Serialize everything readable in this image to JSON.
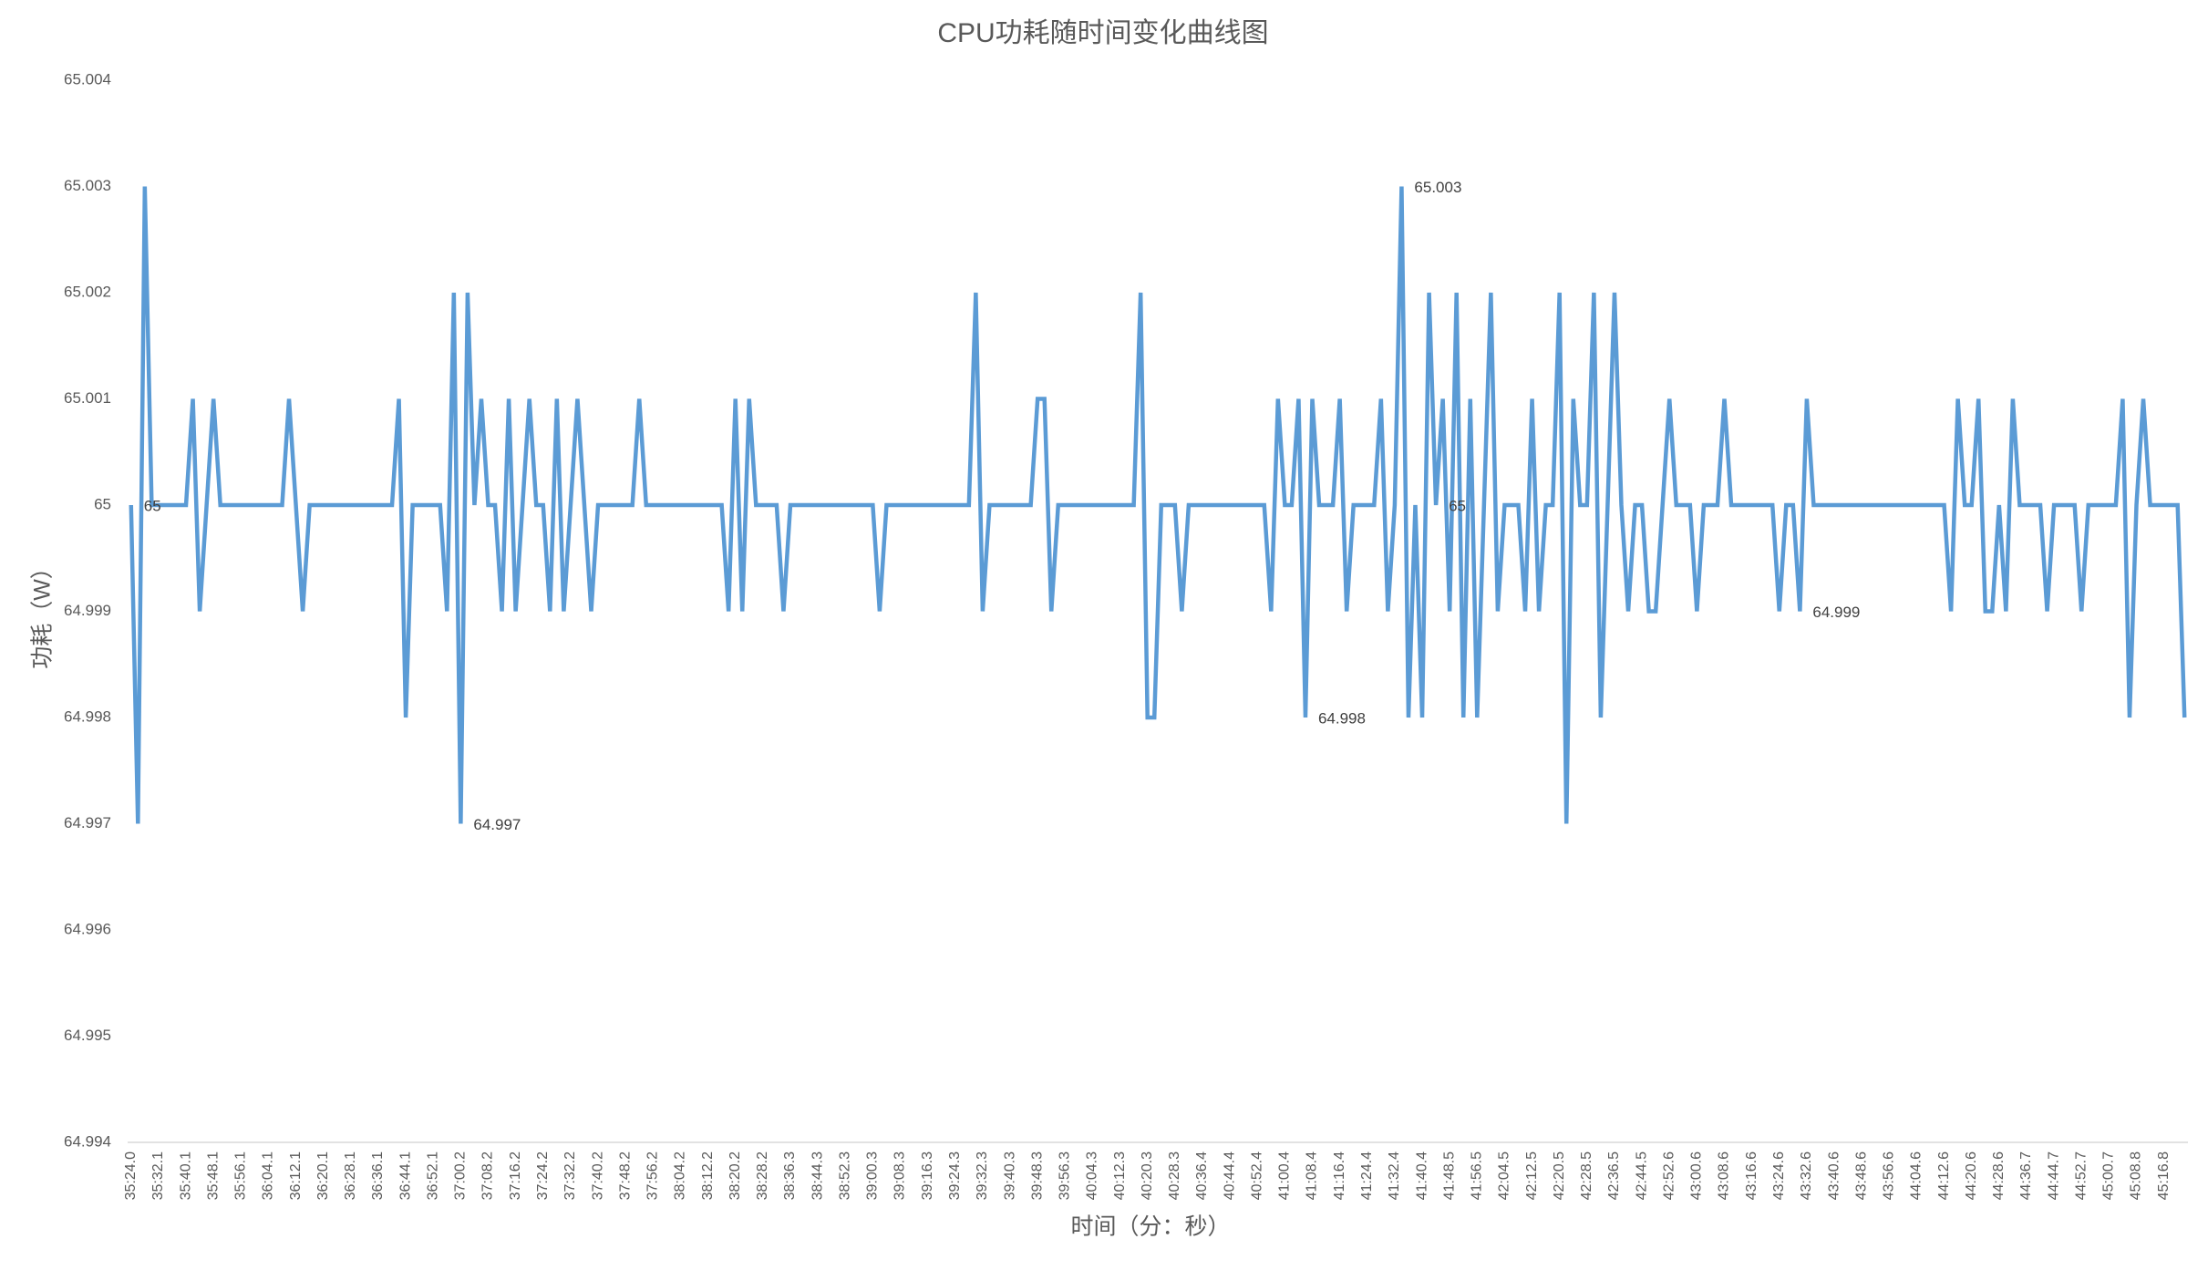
{
  "chart_data": {
    "type": "line",
    "title": "CPU功耗随时间变化曲线图",
    "x_label": "时间（分：秒）",
    "y_label": "功耗（W）",
    "color": "#5b9bd5",
    "grid": false,
    "ylim": [
      64.994,
      65.004
    ],
    "yticks": [
      64.994,
      64.995,
      64.996,
      64.997,
      64.998,
      64.999,
      65,
      65.001,
      65.002,
      65.003,
      65.004
    ],
    "categories": [
      "35:24.0",
      null,
      null,
      null,
      "35:32.1",
      null,
      null,
      null,
      "35:40.1",
      null,
      null,
      null,
      "35:48.1",
      null,
      null,
      null,
      "35:56.1",
      null,
      null,
      null,
      "36:04.1",
      null,
      null,
      null,
      "36:12.1",
      null,
      null,
      null,
      "36:20.1",
      null,
      null,
      null,
      "36:28.1",
      null,
      null,
      null,
      "36:36.1",
      null,
      null,
      null,
      "36:44.1",
      null,
      null,
      null,
      "36:52.1",
      null,
      null,
      null,
      "37:00.2",
      null,
      null,
      null,
      "37:08.2",
      null,
      null,
      null,
      "37:16.2",
      null,
      null,
      null,
      "37:24.2",
      null,
      null,
      null,
      "37:32.2",
      null,
      null,
      null,
      "37:40.2",
      null,
      null,
      null,
      "37:48.2",
      null,
      null,
      null,
      "37:56.2",
      null,
      null,
      null,
      "38:04.2",
      null,
      null,
      null,
      "38:12.2",
      null,
      null,
      null,
      "38:20.2",
      null,
      null,
      null,
      "38:28.2",
      null,
      null,
      null,
      "38:36.3",
      null,
      null,
      null,
      "38:44.3",
      null,
      null,
      null,
      "38:52.3",
      null,
      null,
      null,
      "39:00.3",
      null,
      null,
      null,
      "39:08.3",
      null,
      null,
      null,
      "39:16.3",
      null,
      null,
      null,
      "39:24.3",
      null,
      null,
      null,
      "39:32.3",
      null,
      null,
      null,
      "39:40.3",
      null,
      null,
      null,
      "39:48.3",
      null,
      null,
      null,
      "39:56.3",
      null,
      null,
      null,
      "40:04.3",
      null,
      null,
      null,
      "40:12.3",
      null,
      null,
      null,
      "40:20.3",
      null,
      null,
      null,
      "40:28.3",
      null,
      null,
      null,
      "40:36.4",
      null,
      null,
      null,
      "40:44.4",
      null,
      null,
      null,
      "40:52.4",
      null,
      null,
      null,
      "41:00.4",
      null,
      null,
      null,
      "41:08.4",
      null,
      null,
      null,
      "41:16.4",
      null,
      null,
      null,
      "41:24.4",
      null,
      null,
      null,
      "41:32.4",
      null,
      null,
      null,
      "41:40.4",
      null,
      null,
      null,
      "41:48.5",
      null,
      null,
      null,
      "41:56.5",
      null,
      null,
      null,
      "42:04.5",
      null,
      null,
      null,
      "42:12.5",
      null,
      null,
      null,
      "42:20.5",
      null,
      null,
      null,
      "42:28.5",
      null,
      null,
      null,
      "42:36.5",
      null,
      null,
      null,
      "42:44.5",
      null,
      null,
      null,
      "42:52.6",
      null,
      null,
      null,
      "43:00.6",
      null,
      null,
      null,
      "43:08.6",
      null,
      null,
      null,
      "43:16.6",
      null,
      null,
      null,
      "43:24.6",
      null,
      null,
      null,
      "43:32.6",
      null,
      null,
      null,
      "43:40.6",
      null,
      null,
      null,
      "43:48.6",
      null,
      null,
      null,
      "43:56.6",
      null,
      null,
      null,
      "44:04.6",
      null,
      null,
      null,
      "44:12.6",
      null,
      null,
      null,
      "44:20.6",
      null,
      null,
      null,
      "44:28.6",
      null,
      null,
      null,
      "44:36.7",
      null,
      null,
      null,
      "44:44.7",
      null,
      null,
      null,
      "44:52.7",
      null,
      null,
      null,
      "45:00.7",
      null,
      null,
      null,
      "45:08.8",
      null,
      null,
      null,
      "45:16.8",
      null,
      null,
      null
    ],
    "values": [
      65,
      64.997,
      65.003,
      65,
      65,
      65,
      65,
      65,
      65,
      65.001,
      64.999,
      65,
      65.001,
      65,
      65,
      65,
      65,
      65,
      65,
      65,
      65,
      65,
      65,
      65.001,
      65,
      64.999,
      65,
      65,
      65,
      65,
      65,
      65,
      65,
      65,
      65,
      65,
      65,
      65,
      65,
      65.001,
      64.998,
      65,
      65,
      65,
      65,
      65,
      64.999,
      65.002,
      64.997,
      65.002,
      65,
      65.001,
      65,
      65,
      64.999,
      65.001,
      64.999,
      65,
      65.001,
      65,
      65,
      64.999,
      65.001,
      64.999,
      65,
      65.001,
      65,
      64.999,
      65,
      65,
      65,
      65,
      65,
      65,
      65.001,
      65,
      65,
      65,
      65,
      65,
      65,
      65,
      65,
      65,
      65,
      65,
      65,
      64.999,
      65.001,
      64.999,
      65.001,
      65,
      65,
      65,
      65,
      64.999,
      65,
      65,
      65,
      65,
      65,
      65,
      65,
      65,
      65,
      65,
      65,
      65,
      65,
      64.999,
      65,
      65,
      65,
      65,
      65,
      65,
      65,
      65,
      65,
      65,
      65,
      65,
      65,
      65.002,
      64.999,
      65,
      65,
      65,
      65,
      65,
      65,
      65,
      65.001,
      65.001,
      64.999,
      65,
      65,
      65,
      65,
      65,
      65,
      65,
      65,
      65,
      65,
      65,
      65,
      65.002,
      64.998,
      64.998,
      65,
      65,
      65,
      64.999,
      65,
      65,
      65,
      65,
      65,
      65,
      65,
      65,
      65,
      65,
      65,
      65,
      64.999,
      65.001,
      65,
      65,
      65.001,
      64.998,
      65.001,
      65,
      65,
      65,
      65.001,
      64.999,
      65,
      65,
      65,
      65,
      65.001,
      64.999,
      65,
      65.003,
      64.998,
      65,
      64.998,
      65.002,
      65,
      65.001,
      64.999,
      65.002,
      64.998,
      65.001,
      64.998,
      65,
      65.002,
      64.999,
      65,
      65,
      65,
      64.999,
      65.001,
      64.999,
      65,
      65,
      65.002,
      64.997,
      65.001,
      65,
      65,
      65.002,
      64.998,
      65,
      65.002,
      65,
      64.999,
      65,
      65,
      64.999,
      64.999,
      65,
      65.001,
      65,
      65,
      65,
      64.999,
      65,
      65,
      65,
      65.001,
      65,
      65,
      65,
      65,
      65,
      65,
      65,
      64.999,
      65,
      65,
      64.999,
      65.001,
      65,
      65,
      65,
      65,
      65,
      65,
      65,
      65,
      65,
      65,
      65,
      65,
      65,
      65,
      65,
      65,
      65,
      65,
      65,
      65,
      64.999,
      65.001,
      65,
      65,
      65.001,
      64.999,
      64.999,
      65,
      64.999,
      65.001,
      65,
      65,
      65,
      65,
      64.999,
      65,
      65,
      65,
      65,
      64.999,
      65,
      65,
      65,
      65,
      65,
      65.001,
      64.998,
      65,
      65.001,
      65,
      65,
      65,
      65,
      65,
      64.998
    ],
    "value_labels": [
      "65",
      null,
      null,
      null,
      null,
      null,
      null,
      null,
      null,
      null,
      null,
      null,
      null,
      null,
      null,
      null,
      null,
      null,
      null,
      null,
      null,
      null,
      null,
      null,
      null,
      null,
      null,
      null,
      null,
      null,
      null,
      null,
      null,
      null,
      null,
      null,
      null,
      null,
      null,
      null,
      null,
      null,
      null,
      null,
      null,
      null,
      null,
      null,
      "64.997",
      null,
      null,
      null,
      null,
      null,
      null,
      null,
      null,
      null,
      null,
      null,
      null,
      null,
      null,
      null,
      null,
      null,
      null,
      null,
      null,
      null,
      null,
      null,
      null,
      null,
      null,
      null,
      null,
      null,
      null,
      null,
      null,
      null,
      null,
      null,
      null,
      null,
      null,
      null,
      null,
      null,
      null,
      null,
      null,
      null,
      null,
      null,
      null,
      null,
      null,
      null,
      null,
      null,
      null,
      null,
      null,
      null,
      null,
      null,
      null,
      null,
      null,
      null,
      null,
      null,
      null,
      null,
      null,
      null,
      null,
      null,
      null,
      null,
      null,
      null,
      null,
      null,
      null,
      null,
      null,
      null,
      null,
      null,
      null,
      null,
      null,
      null,
      null,
      null,
      null,
      null,
      null,
      null,
      null,
      null,
      null,
      null,
      null,
      null,
      null,
      null,
      null,
      null,
      null,
      null,
      null,
      null,
      null,
      null,
      null,
      null,
      null,
      null,
      null,
      null,
      null,
      null,
      null,
      null,
      null,
      null,
      null,
      "64.998",
      null,
      null,
      null,
      null,
      null,
      null,
      null,
      null,
      null,
      null,
      null,
      null,
      null,
      "65.003",
      null,
      null,
      null,
      null,
      "65",
      null,
      null,
      null,
      null,
      null,
      null,
      null,
      null,
      null,
      null,
      null,
      null,
      null,
      null,
      null,
      null,
      null,
      null,
      null,
      null,
      null,
      null,
      null,
      null,
      null,
      null,
      null,
      null,
      null,
      null,
      null,
      null,
      null,
      null,
      null,
      null,
      null,
      null,
      null,
      null,
      null,
      null,
      null,
      null,
      null,
      null,
      null,
      null,
      null,
      null,
      null,
      null,
      "64.999",
      null,
      null,
      null,
      null,
      null,
      null,
      null,
      null,
      null,
      null,
      null,
      null,
      null,
      null,
      null,
      null,
      null,
      null,
      null,
      null,
      null,
      null,
      null,
      null,
      null,
      null,
      null,
      null,
      null,
      null,
      null,
      null,
      null,
      null,
      null,
      null,
      null,
      null,
      null,
      null,
      null,
      null,
      null,
      null,
      null,
      null,
      null,
      null,
      null,
      null,
      null,
      null,
      null,
      null,
      null,
      null
    ]
  }
}
